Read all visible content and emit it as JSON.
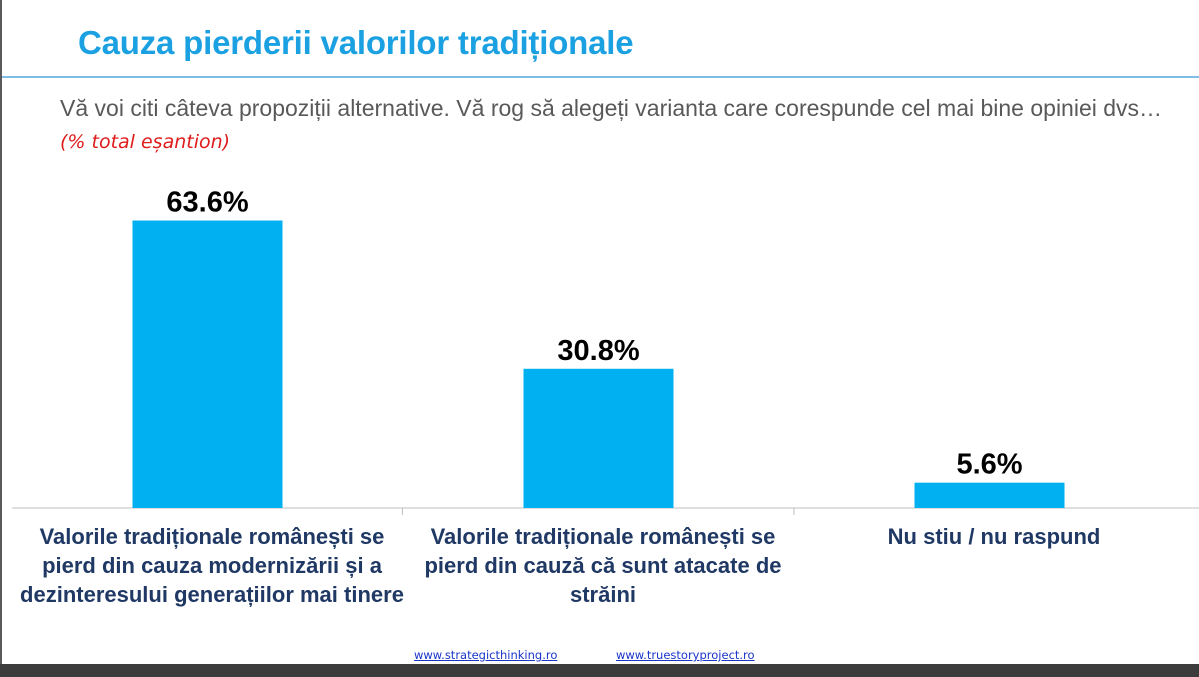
{
  "title": "Cauza pierderii valorilor tradiționale",
  "subtitle": {
    "text": "Vă voi citi câteva propoziții alternative. Vă rog să alegeți varianta care corespunde cel mai bine opiniei dvs…",
    "note": "(% total eșantion)"
  },
  "chart_data": {
    "type": "bar",
    "categories": [
      "Valorile tradiționale românești se pierd din cauza modernizării și a dezinteresului generațiilor mai tinere",
      "Valorile tradiționale românești se pierd din cauză că sunt atacate de străini",
      "Nu stiu / nu raspund"
    ],
    "values": [
      63.6,
      30.8,
      5.6
    ],
    "value_labels": [
      "63.6%",
      "30.8%",
      "5.6%"
    ],
    "unit": "%",
    "ylim": [
      0,
      70
    ],
    "grid": false,
    "bar_color": "#00b0f0",
    "label_color": "#1f3864",
    "value_label_color": "#000000"
  },
  "footer": {
    "links": [
      "www.strategicthinking.ro",
      "www.truestoryproject.ro"
    ]
  },
  "colors": {
    "title": "#1ba1e2",
    "note": "#e01b1b",
    "link": "#1a35c9"
  }
}
